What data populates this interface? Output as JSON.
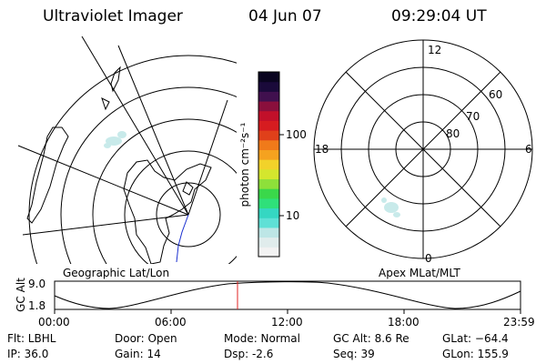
{
  "header": {
    "title": "Ultraviolet Imager",
    "date": "04 Jun 07",
    "time": "09:29:04 UT"
  },
  "colorbar": {
    "unit_label": "photon cm⁻²s⁻¹",
    "tick_100": "100",
    "tick_10": "10",
    "colors": [
      "#f2f2f2",
      "#e0ecec",
      "#bde6e6",
      "#5fe0d6",
      "#35d7c2",
      "#2fe07a",
      "#3ad84a",
      "#8ee03a",
      "#d4e62e",
      "#f2d22a",
      "#f5a21f",
      "#f07a1a",
      "#e0401a",
      "#d61c20",
      "#c2102a",
      "#8a0f3c",
      "#40104e",
      "#1a0a3a",
      "#0a0520"
    ]
  },
  "left_map": {
    "caption": "Geographic Lat/Lon"
  },
  "right_map": {
    "caption": "Apex MLat/MLT",
    "mlt_labels": [
      "12",
      "18",
      "6",
      "0"
    ],
    "mlat_labels": [
      "60",
      "70",
      "80"
    ]
  },
  "altitude_plot": {
    "ylabel": "GC Alt",
    "y_top": "9.0",
    "y_bottom": "1.8",
    "x_ticks": [
      "00:00",
      "06:00",
      "12:00",
      "18:00",
      "23:59"
    ],
    "marker_color": "#e02020"
  },
  "info": {
    "flt": "Flt: LBHL",
    "ip": "IP: 36.0",
    "door": "Door: Open",
    "gain": "Gain: 14",
    "mode": "Mode: Normal",
    "dsp": "Dsp:    -2.6",
    "gc_alt": "GC Alt: 8.6 Re",
    "seq": "Seq: 39",
    "glat": "GLat: −64.4",
    "glon": "GLon: 155.9"
  }
}
